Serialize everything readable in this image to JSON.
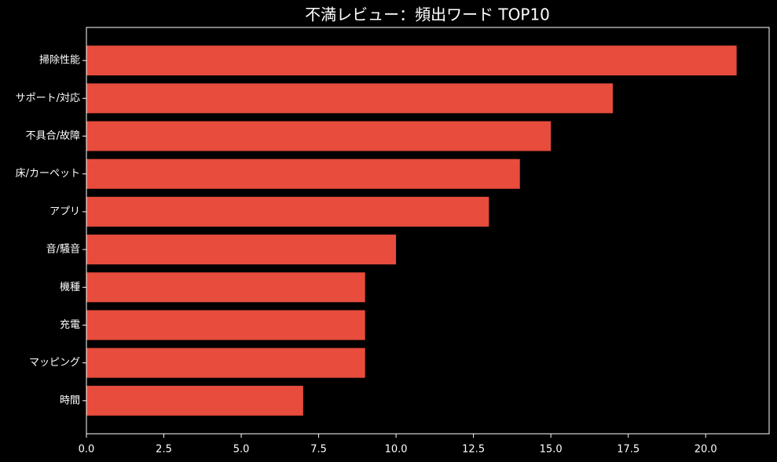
{
  "chart_data": {
    "type": "barh",
    "title": "不満レビュー：頻出ワード TOP10",
    "categories": [
      "掃除性能",
      "サポート/対応",
      "不具合/故障",
      "床/カーペット",
      "アプリ",
      "音/騒音",
      "機種",
      "充電",
      "マッピング",
      "時間"
    ],
    "values": [
      21,
      17,
      15,
      14,
      13,
      10,
      9,
      9,
      9,
      7
    ],
    "color": "#e74c3c",
    "xlim": [
      0,
      22.05
    ],
    "xticks": [
      {
        "value": 0,
        "label": "0.0"
      },
      {
        "value": 2.5,
        "label": "2.5"
      },
      {
        "value": 5,
        "label": "5.0"
      },
      {
        "value": 7.5,
        "label": "7.5"
      },
      {
        "value": 10,
        "label": "10.0"
      },
      {
        "value": 12.5,
        "label": "12.5"
      },
      {
        "value": 15,
        "label": "15.0"
      },
      {
        "value": 17.5,
        "label": "17.5"
      },
      {
        "value": 20,
        "label": "20.0"
      }
    ]
  }
}
